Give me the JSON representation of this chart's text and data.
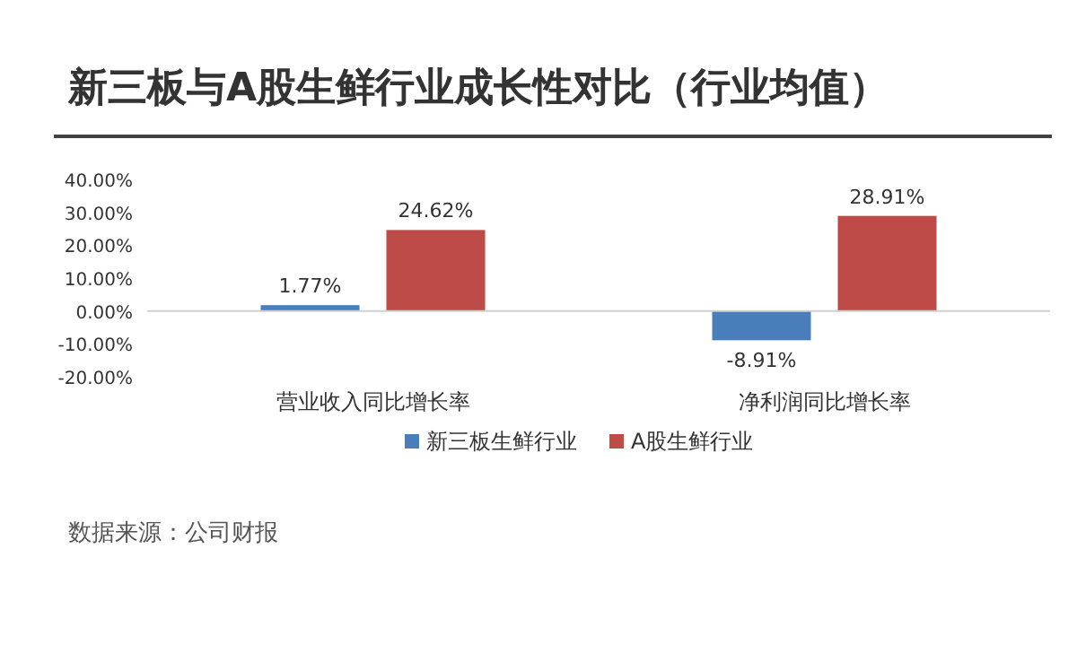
{
  "chart_data": {
    "type": "bar",
    "title": "新三板与A股生鲜行业成长性对比（行业均值）",
    "categories": [
      "营业收入同比增长率",
      "净利润同比增长率"
    ],
    "series": [
      {
        "name": "新三板生鲜行业",
        "color": "#4a7ebb",
        "values": [
          1.77,
          -8.91
        ],
        "value_labels": [
          "1.77%",
          "-8.91%"
        ]
      },
      {
        "name": "A股生鲜行业",
        "color": "#be4b48",
        "values": [
          24.62,
          28.91
        ],
        "value_labels": [
          "24.62%",
          "28.91%"
        ]
      }
    ],
    "ylim": [
      -20,
      40
    ],
    "yticks": [
      {
        "value": 40,
        "label": "40.00%"
      },
      {
        "value": 30,
        "label": "30.00%"
      },
      {
        "value": 20,
        "label": "20.00%"
      },
      {
        "value": 10,
        "label": "10.00%"
      },
      {
        "value": 0,
        "label": "0.00%"
      },
      {
        "value": -10,
        "label": "-10.00%"
      },
      {
        "value": -20,
        "label": "-20.00%"
      }
    ],
    "legend": "bottom",
    "annotations": [
      "数据来源：公司财报"
    ]
  }
}
